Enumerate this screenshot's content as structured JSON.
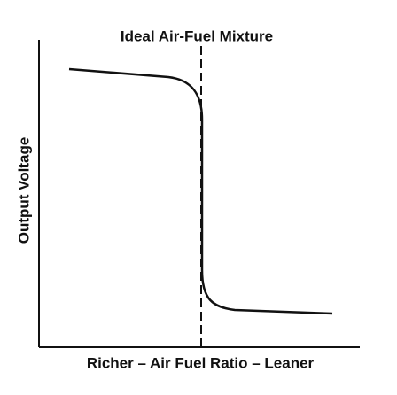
{
  "title": "Ideal Air-Fuel Mixture",
  "y_axis_label": "Output Voltage",
  "x_axis_label": "Richer – Air Fuel Ratio – Leaner"
}
